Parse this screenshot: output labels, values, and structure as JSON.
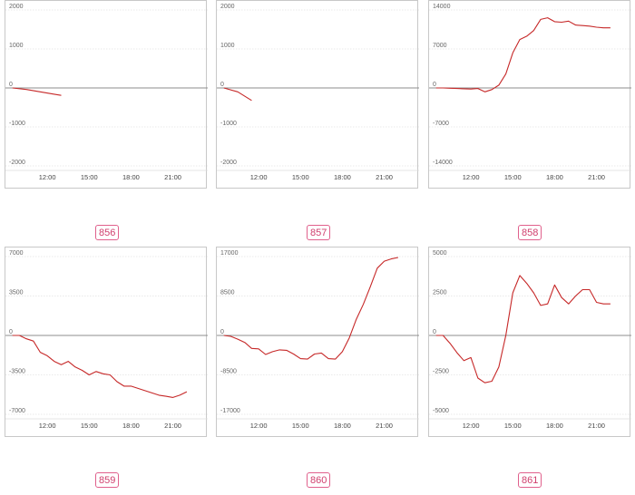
{
  "chart_data": [
    {
      "type": "line",
      "id_label": "856",
      "yticks": [
        "2000",
        "1000",
        "0",
        "-1000",
        "-2000"
      ],
      "ylim": [
        -2000,
        2000
      ],
      "xticks": [
        "12:00",
        "15:00",
        "18:00",
        "21:00"
      ],
      "x": [
        "09:30",
        "10:30",
        "11:30",
        "12:30",
        "13:00"
      ],
      "series": [
        {
          "values": [
            0,
            -40,
            -100,
            -160,
            -190
          ],
          "color": "#c62828"
        }
      ],
      "grid": true
    },
    {
      "type": "line",
      "id_label": "857",
      "yticks": [
        "2000",
        "1000",
        "0",
        "-1000",
        "-2000"
      ],
      "ylim": [
        -2000,
        2000
      ],
      "xticks": [
        "12:00",
        "15:00",
        "18:00",
        "21:00"
      ],
      "x": [
        "09:30",
        "10:30",
        "11:30"
      ],
      "series": [
        {
          "values": [
            0,
            -100,
            -320
          ],
          "color": "#c62828"
        }
      ],
      "grid": true
    },
    {
      "type": "line",
      "id_label": "858",
      "yticks": [
        "14000",
        "7000",
        "0",
        "-7000",
        "-14000"
      ],
      "ylim": [
        -14000,
        14000
      ],
      "xticks": [
        "12:00",
        "15:00",
        "18:00",
        "21:00"
      ],
      "x": [
        "09:30",
        "10:00",
        "10:30",
        "11:00",
        "11:30",
        "12:00",
        "12:30",
        "13:00",
        "13:30",
        "14:00",
        "14:30",
        "15:00",
        "15:30",
        "16:00",
        "16:30",
        "17:00",
        "17:30",
        "18:00",
        "18:30",
        "19:00",
        "19:30",
        "20:00",
        "20:30",
        "21:00",
        "21:30",
        "22:00"
      ],
      "series": [
        {
          "values": [
            0,
            0,
            -50,
            -100,
            -150,
            -200,
            -100,
            -700,
            -300,
            500,
            2500,
            6300,
            8700,
            9300,
            10300,
            12300,
            12600,
            11900,
            11800,
            12000,
            11300,
            11200,
            11100,
            10900,
            10800,
            10800
          ],
          "color": "#c62828"
        }
      ],
      "grid": true
    },
    {
      "type": "line",
      "id_label": "859",
      "yticks": [
        "7000",
        "3500",
        "0",
        "-3500",
        "-7000"
      ],
      "ylim": [
        -7000,
        7000
      ],
      "xticks": [
        "12:00",
        "15:00",
        "18:00",
        "21:00"
      ],
      "x": [
        "09:30",
        "10:00",
        "10:30",
        "11:00",
        "11:30",
        "12:00",
        "12:30",
        "13:00",
        "13:30",
        "14:00",
        "14:30",
        "15:00",
        "15:30",
        "16:00",
        "16:30",
        "17:00",
        "17:30",
        "18:00",
        "18:30",
        "19:00",
        "19:30",
        "20:00",
        "20:30",
        "21:00",
        "21:30",
        "22:00"
      ],
      "series": [
        {
          "values": [
            0,
            0,
            -300,
            -500,
            -1500,
            -1800,
            -2300,
            -2600,
            -2300,
            -2800,
            -3100,
            -3500,
            -3200,
            -3400,
            -3500,
            -4100,
            -4500,
            -4500,
            -4700,
            -4900,
            -5100,
            -5300,
            -5400,
            -5500,
            -5300,
            -5000
          ],
          "color": "#c62828"
        }
      ],
      "grid": true
    },
    {
      "type": "line",
      "id_label": "860",
      "yticks": [
        "17000",
        "8500",
        "0",
        "-8500",
        "-17000"
      ],
      "ylim": [
        -17000,
        17000
      ],
      "xticks": [
        "12:00",
        "15:00",
        "18:00",
        "21:00"
      ],
      "x": [
        "09:30",
        "10:00",
        "10:30",
        "11:00",
        "11:30",
        "12:00",
        "12:30",
        "13:00",
        "13:30",
        "14:00",
        "14:30",
        "15:00",
        "15:30",
        "16:00",
        "16:30",
        "17:00",
        "17:30",
        "18:00",
        "18:30",
        "19:00",
        "19:30",
        "20:00",
        "20:30",
        "21:00",
        "21:30",
        "22:00"
      ],
      "series": [
        {
          "values": [
            0,
            -200,
            -800,
            -1500,
            -2800,
            -2900,
            -4100,
            -3500,
            -3100,
            -3200,
            -4000,
            -5000,
            -5100,
            -4000,
            -3800,
            -5000,
            -5100,
            -3500,
            -500,
            3500,
            6700,
            10500,
            14500,
            16000,
            16500,
            16800
          ],
          "color": "#c62828"
        }
      ],
      "grid": true
    },
    {
      "type": "line",
      "id_label": "861",
      "yticks": [
        "5000",
        "2500",
        "0",
        "-2500",
        "-5000"
      ],
      "ylim": [
        -5000,
        5000
      ],
      "xticks": [
        "12:00",
        "15:00",
        "18:00",
        "21:00"
      ],
      "x": [
        "09:30",
        "10:00",
        "10:30",
        "11:00",
        "11:30",
        "12:00",
        "12:30",
        "13:00",
        "13:30",
        "14:00",
        "14:30",
        "15:00",
        "15:30",
        "16:00",
        "16:30",
        "17:00",
        "17:30",
        "18:00",
        "18:30",
        "19:00",
        "19:30",
        "20:00",
        "20:30",
        "21:00",
        "21:30",
        "22:00"
      ],
      "series": [
        {
          "values": [
            0,
            0,
            -500,
            -1100,
            -1600,
            -1400,
            -2700,
            -3000,
            -2900,
            -2000,
            0,
            2700,
            3800,
            3300,
            2700,
            1900,
            2000,
            3200,
            2400,
            2000,
            2500,
            2900,
            2900,
            2100,
            2000,
            2000
          ],
          "color": "#c62828"
        }
      ],
      "grid": true
    }
  ]
}
